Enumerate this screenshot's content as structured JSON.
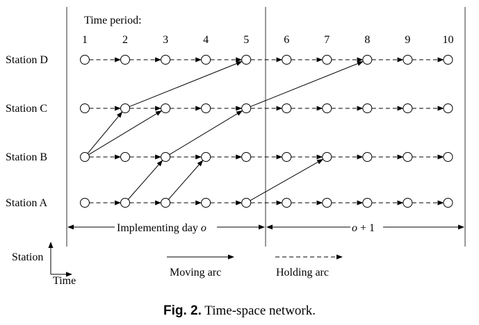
{
  "header": {
    "time_period_label": "Time period:"
  },
  "time_periods": [
    "1",
    "2",
    "3",
    "4",
    "5",
    "6",
    "7",
    "8",
    "9",
    "10"
  ],
  "stations": [
    "Station D",
    "Station C",
    "Station B",
    "Station A"
  ],
  "moving_arcs": [
    {
      "from": [
        "B",
        1
      ],
      "to": [
        "C",
        2
      ]
    },
    {
      "from": [
        "B",
        1
      ],
      "to": [
        "C",
        3
      ]
    },
    {
      "from": [
        "C",
        2
      ],
      "to": [
        "D",
        5
      ]
    },
    {
      "from": [
        "A",
        2
      ],
      "to": [
        "B",
        3
      ]
    },
    {
      "from": [
        "B",
        3
      ],
      "to": [
        "C",
        5
      ]
    },
    {
      "from": [
        "A",
        3
      ],
      "to": [
        "B",
        4
      ]
    },
    {
      "from": [
        "C",
        5
      ],
      "to": [
        "D",
        8
      ]
    },
    {
      "from": [
        "A",
        5
      ],
      "to": [
        "B",
        7
      ]
    }
  ],
  "days": {
    "day1_label": "Implementing day",
    "day1_var": "o",
    "day2_var": "o",
    "day2_suffix": " + 1"
  },
  "axes_legend": {
    "station": "Station",
    "time": "Time"
  },
  "legend": {
    "moving_arc": "Moving arc",
    "holding_arc": "Holding arc"
  },
  "caption": {
    "label": "Fig. 2.",
    "text": " Time-space network."
  }
}
